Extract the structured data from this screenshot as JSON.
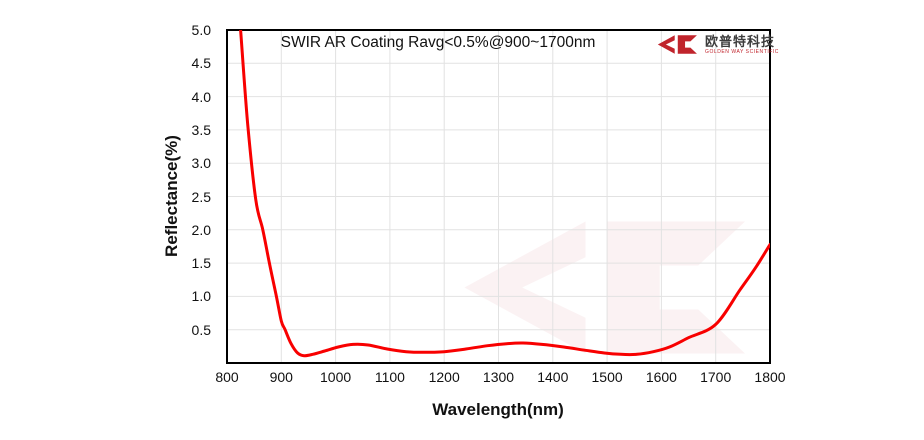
{
  "header": {
    "title": "SWIR AR Coating Ravg<0.5%@900~1700nm"
  },
  "logo": {
    "mark_icon": "jc-arrows-monogram",
    "name_cn": "欧普特科技",
    "name_en": "GOLDEN WAY SCIENTIFIC",
    "color": "#c0242c"
  },
  "chart_data": {
    "type": "line",
    "title": "SWIR AR Coating Ravg<0.5%@900~1700nm",
    "xlabel": "Wavelength(nm)",
    "ylabel": "Reflectance(%)",
    "xlim": [
      800,
      1800
    ],
    "ylim": [
      0,
      5
    ],
    "x_ticks": [
      800,
      900,
      1000,
      1100,
      1200,
      1300,
      1400,
      1500,
      1600,
      1700,
      1800
    ],
    "y_ticks": [
      0.5,
      1.0,
      1.5,
      2.0,
      2.5,
      3.0,
      3.5,
      4.0,
      4.5,
      5.0
    ],
    "y_tick_labels": [
      "0.5",
      "1.0",
      "1.5",
      "2.0",
      "2.5",
      "3.0",
      "3.5",
      "4.0",
      "4.5",
      "5.0"
    ],
    "grid": true,
    "grid_color": "#e2e2e2",
    "border_color": "#000000",
    "line_color": "#f80000",
    "line_width": 3,
    "legend": "none",
    "watermark": "jc-logo-faint",
    "series": [
      {
        "name": "Reflectance",
        "x": [
          825,
          838,
          853,
          866,
          878,
          891,
          900,
          907,
          918,
          930,
          942,
          958,
          980,
          1005,
          1032,
          1060,
          1095,
          1130,
          1160,
          1200,
          1240,
          1280,
          1315,
          1345,
          1380,
          1420,
          1460,
          1495,
          1525,
          1555,
          1585,
          1615,
          1650,
          1700,
          1745,
          1775,
          1800
        ],
        "y": [
          5.0,
          3.6,
          2.45,
          2.0,
          1.5,
          1.0,
          0.63,
          0.5,
          0.29,
          0.15,
          0.11,
          0.13,
          0.18,
          0.24,
          0.28,
          0.27,
          0.21,
          0.17,
          0.16,
          0.17,
          0.21,
          0.26,
          0.29,
          0.3,
          0.28,
          0.24,
          0.19,
          0.15,
          0.13,
          0.13,
          0.17,
          0.24,
          0.38,
          0.58,
          1.1,
          1.45,
          1.78
        ]
      }
    ]
  }
}
